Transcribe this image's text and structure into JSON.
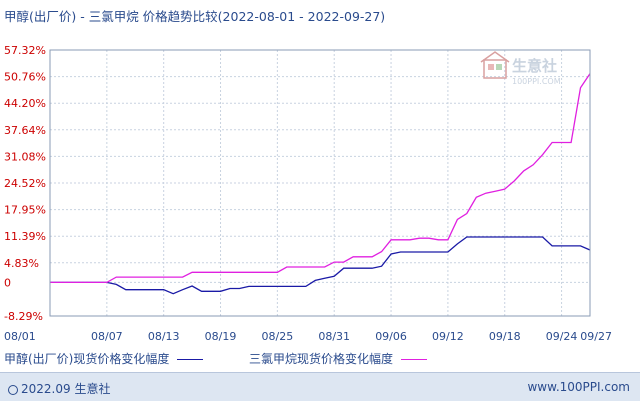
{
  "title": "甲醇(出厂价) - 三氯甲烷 价格趋势比较(2022-08-01 - 2022-09-27)",
  "watermark": {
    "brand": "生意社",
    "site": "100PPI.COM"
  },
  "footer": {
    "copyright": "2022.09 生意社",
    "site": "www.100PPI.com"
  },
  "colors": {
    "series1": "#1a1aa6",
    "series2": "#e020e0",
    "axis_text_y": "#cc0000",
    "axis_text_x": "#2a4b8d"
  },
  "chart_data": {
    "type": "line",
    "title": "甲醇(出厂价) - 三氯甲烷 价格趋势比较(2022-08-01 - 2022-09-27)",
    "xlabel": "",
    "ylabel": "",
    "ylim": [
      -8.29,
      57.32
    ],
    "y_ticks": [
      "57.32%",
      "50.76%",
      "44.20%",
      "37.64%",
      "31.08%",
      "24.52%",
      "17.95%",
      "11.39%",
      "4.83%",
      "0",
      "-8.29%"
    ],
    "y_tick_values": [
      57.32,
      50.76,
      44.2,
      37.64,
      31.08,
      24.52,
      17.95,
      11.39,
      4.83,
      0,
      -8.29
    ],
    "x_ticks": [
      "08/01",
      "08/07",
      "08/13",
      "08/19",
      "08/25",
      "08/31",
      "09/06",
      "09/12",
      "09/18",
      "09/24",
      "09/27"
    ],
    "x_tick_days": [
      0,
      6,
      12,
      18,
      24,
      30,
      36,
      42,
      48,
      54,
      57
    ],
    "x_range_days": [
      0,
      57
    ],
    "grid": true,
    "legend_position": "bottom",
    "series": [
      {
        "name": "甲醇(出厂价)现货价格变化幅度",
        "x": [
          0,
          6,
          7,
          8,
          12,
          13,
          14,
          15,
          16,
          17,
          18,
          19,
          20,
          21,
          24,
          27,
          28,
          29,
          30,
          31,
          32,
          33,
          34,
          35,
          36,
          37,
          38,
          39,
          40,
          41,
          42,
          43,
          44,
          45,
          46,
          47,
          48,
          49,
          50,
          51,
          52,
          53,
          54,
          55,
          56,
          57
        ],
        "values": [
          0,
          0,
          -0.5,
          -1.8,
          -1.8,
          -2.8,
          -1.8,
          -0.9,
          -2.2,
          -2.2,
          -2.2,
          -1.5,
          -1.5,
          -1.0,
          -1.0,
          -1.0,
          0.5,
          1.0,
          1.5,
          3.5,
          3.5,
          3.5,
          3.5,
          4.0,
          7.0,
          7.5,
          7.5,
          7.5,
          7.5,
          7.5,
          7.5,
          9.5,
          11.2,
          11.2,
          11.2,
          11.2,
          11.2,
          11.2,
          11.2,
          11.2,
          11.2,
          9.0,
          9.0,
          9.0,
          9.0,
          8.0
        ]
      },
      {
        "name": "三氯甲烷现货价格变化幅度",
        "x": [
          0,
          6,
          7,
          8,
          12,
          13,
          14,
          15,
          16,
          17,
          18,
          19,
          20,
          21,
          24,
          25,
          26,
          27,
          28,
          29,
          30,
          31,
          32,
          33,
          34,
          35,
          36,
          37,
          38,
          39,
          40,
          41,
          42,
          43,
          44,
          45,
          46,
          47,
          48,
          49,
          50,
          51,
          52,
          53,
          54,
          55,
          56,
          57
        ],
        "values": [
          0,
          0,
          1.3,
          1.3,
          1.3,
          1.3,
          1.3,
          2.5,
          2.5,
          2.5,
          2.5,
          2.5,
          2.5,
          2.5,
          2.5,
          3.8,
          3.8,
          3.8,
          3.8,
          3.8,
          5.0,
          5.0,
          6.3,
          6.3,
          6.3,
          7.6,
          10.5,
          10.5,
          10.5,
          10.9,
          10.9,
          10.5,
          10.5,
          15.5,
          17.0,
          21.0,
          22.0,
          22.5,
          23.0,
          25.0,
          27.5,
          29.0,
          31.5,
          34.5,
          34.5,
          34.5,
          48.0,
          51.5
        ]
      }
    ]
  }
}
